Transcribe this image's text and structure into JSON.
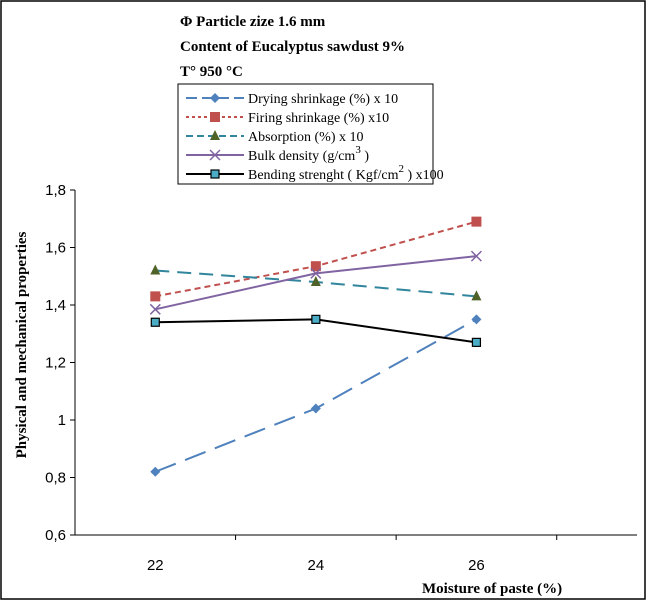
{
  "chart_data": {
    "type": "line",
    "header_lines": [
      "Φ  Particle zize 1.6 mm",
      "Content of Eucalyptus sawdust  9%",
      "T° 950 °C"
    ],
    "xlabel": "Moisture of paste (%)",
    "ylabel": "Physical and mechanical properties",
    "x": [
      22,
      24,
      26
    ],
    "x_ticks": [
      "22",
      "24",
      "26"
    ],
    "xlim": [
      21,
      28
    ],
    "ylim": [
      0.6,
      1.8
    ],
    "y_ticks": [
      "0,6",
      "0,8",
      "1",
      "1,2",
      "1,4",
      "1,6",
      "1,8"
    ],
    "grid": false,
    "legend_position": "top-center",
    "series": [
      {
        "name": "Drying shrinkage (%) x 10",
        "values": [
          0.82,
          1.04,
          1.35
        ],
        "color": "#4F81BD",
        "dash": "22,10",
        "marker": "diamond"
      },
      {
        "name": "Firing shrinkage (%) x10",
        "values": [
          1.43,
          1.535,
          1.69
        ],
        "color": "#C0504D",
        "dash": "6,4",
        "marker": "square"
      },
      {
        "name": "Absorption (%) x 10",
        "values": [
          1.52,
          1.48,
          1.43
        ],
        "color": "#31859C",
        "dash": "14,8",
        "marker": "triangle"
      },
      {
        "name": "Bulk density (g/cm",
        "sup": "3",
        "suffix": " )",
        "values": [
          1.385,
          1.51,
          1.57
        ],
        "color": "#8064A2",
        "dash": "",
        "marker": "x"
      },
      {
        "name": "Bending strenght ( Kgf/cm",
        "sup": "2",
        "suffix": " ) x100",
        "values": [
          1.34,
          1.35,
          1.27
        ],
        "color": "#000000",
        "dash": "",
        "marker": "boxcyan"
      }
    ]
  }
}
